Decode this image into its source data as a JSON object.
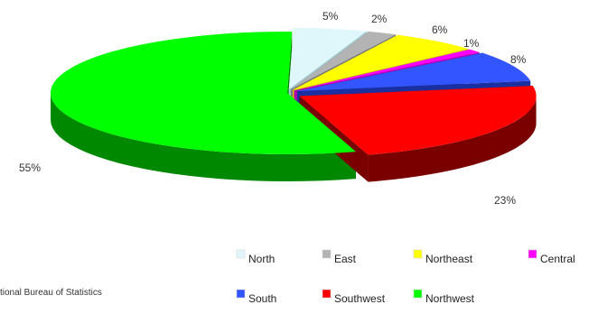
{
  "chart_data": {
    "type": "pie",
    "style": "3d-exploded",
    "categories": [
      "North",
      "East",
      "Northeast",
      "Central",
      "South",
      "Southwest",
      "Northwest"
    ],
    "values": [
      5,
      2,
      6,
      1,
      8,
      23,
      55
    ],
    "labels": [
      "5%",
      "2%",
      "6%",
      "1%",
      "8%",
      "23%",
      "55%"
    ],
    "colors": {
      "top": [
        "#dff7fb",
        "#b3b3b3",
        "#ffff00",
        "#ff00ff",
        "#3355ff",
        "#ff0000",
        "#00ff00"
      ],
      "side": [
        "#9ecfd6",
        "#7a7a7a",
        "#c8c800",
        "#b000b0",
        "#1a2fa0",
        "#7a0000",
        "#008800"
      ]
    },
    "legend": {
      "position": "bottom-right",
      "rows": [
        [
          "North",
          "East",
          "Northeast",
          "Central"
        ],
        [
          "South",
          "Southwest",
          "Northwest"
        ]
      ]
    }
  },
  "source_text": "tional Bureau of Statistics"
}
